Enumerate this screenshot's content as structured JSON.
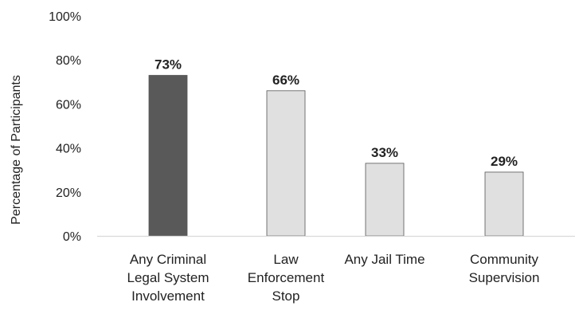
{
  "chart_data": {
    "type": "bar",
    "title": "",
    "ylabel": "Percentage of Participants",
    "xlabel": "",
    "ylim": [
      0,
      100
    ],
    "yticks": [
      "0%",
      "20%",
      "40%",
      "60%",
      "80%",
      "100%"
    ],
    "categories": [
      [
        "Any Criminal",
        "Legal System",
        "Involvement"
      ],
      [
        "Law",
        "Enforcement",
        "Stop"
      ],
      [
        "Any Jail Time"
      ],
      [
        "Community",
        "Supervision"
      ]
    ],
    "values": [
      73,
      66,
      33,
      29
    ],
    "value_labels": [
      "73%",
      "66%",
      "33%",
      "29%"
    ],
    "bar_colors": [
      "#595959",
      "#e0e0e0",
      "#e0e0e0",
      "#e0e0e0"
    ],
    "bar_stroke": "#555555",
    "grid": false,
    "legend": "none"
  }
}
